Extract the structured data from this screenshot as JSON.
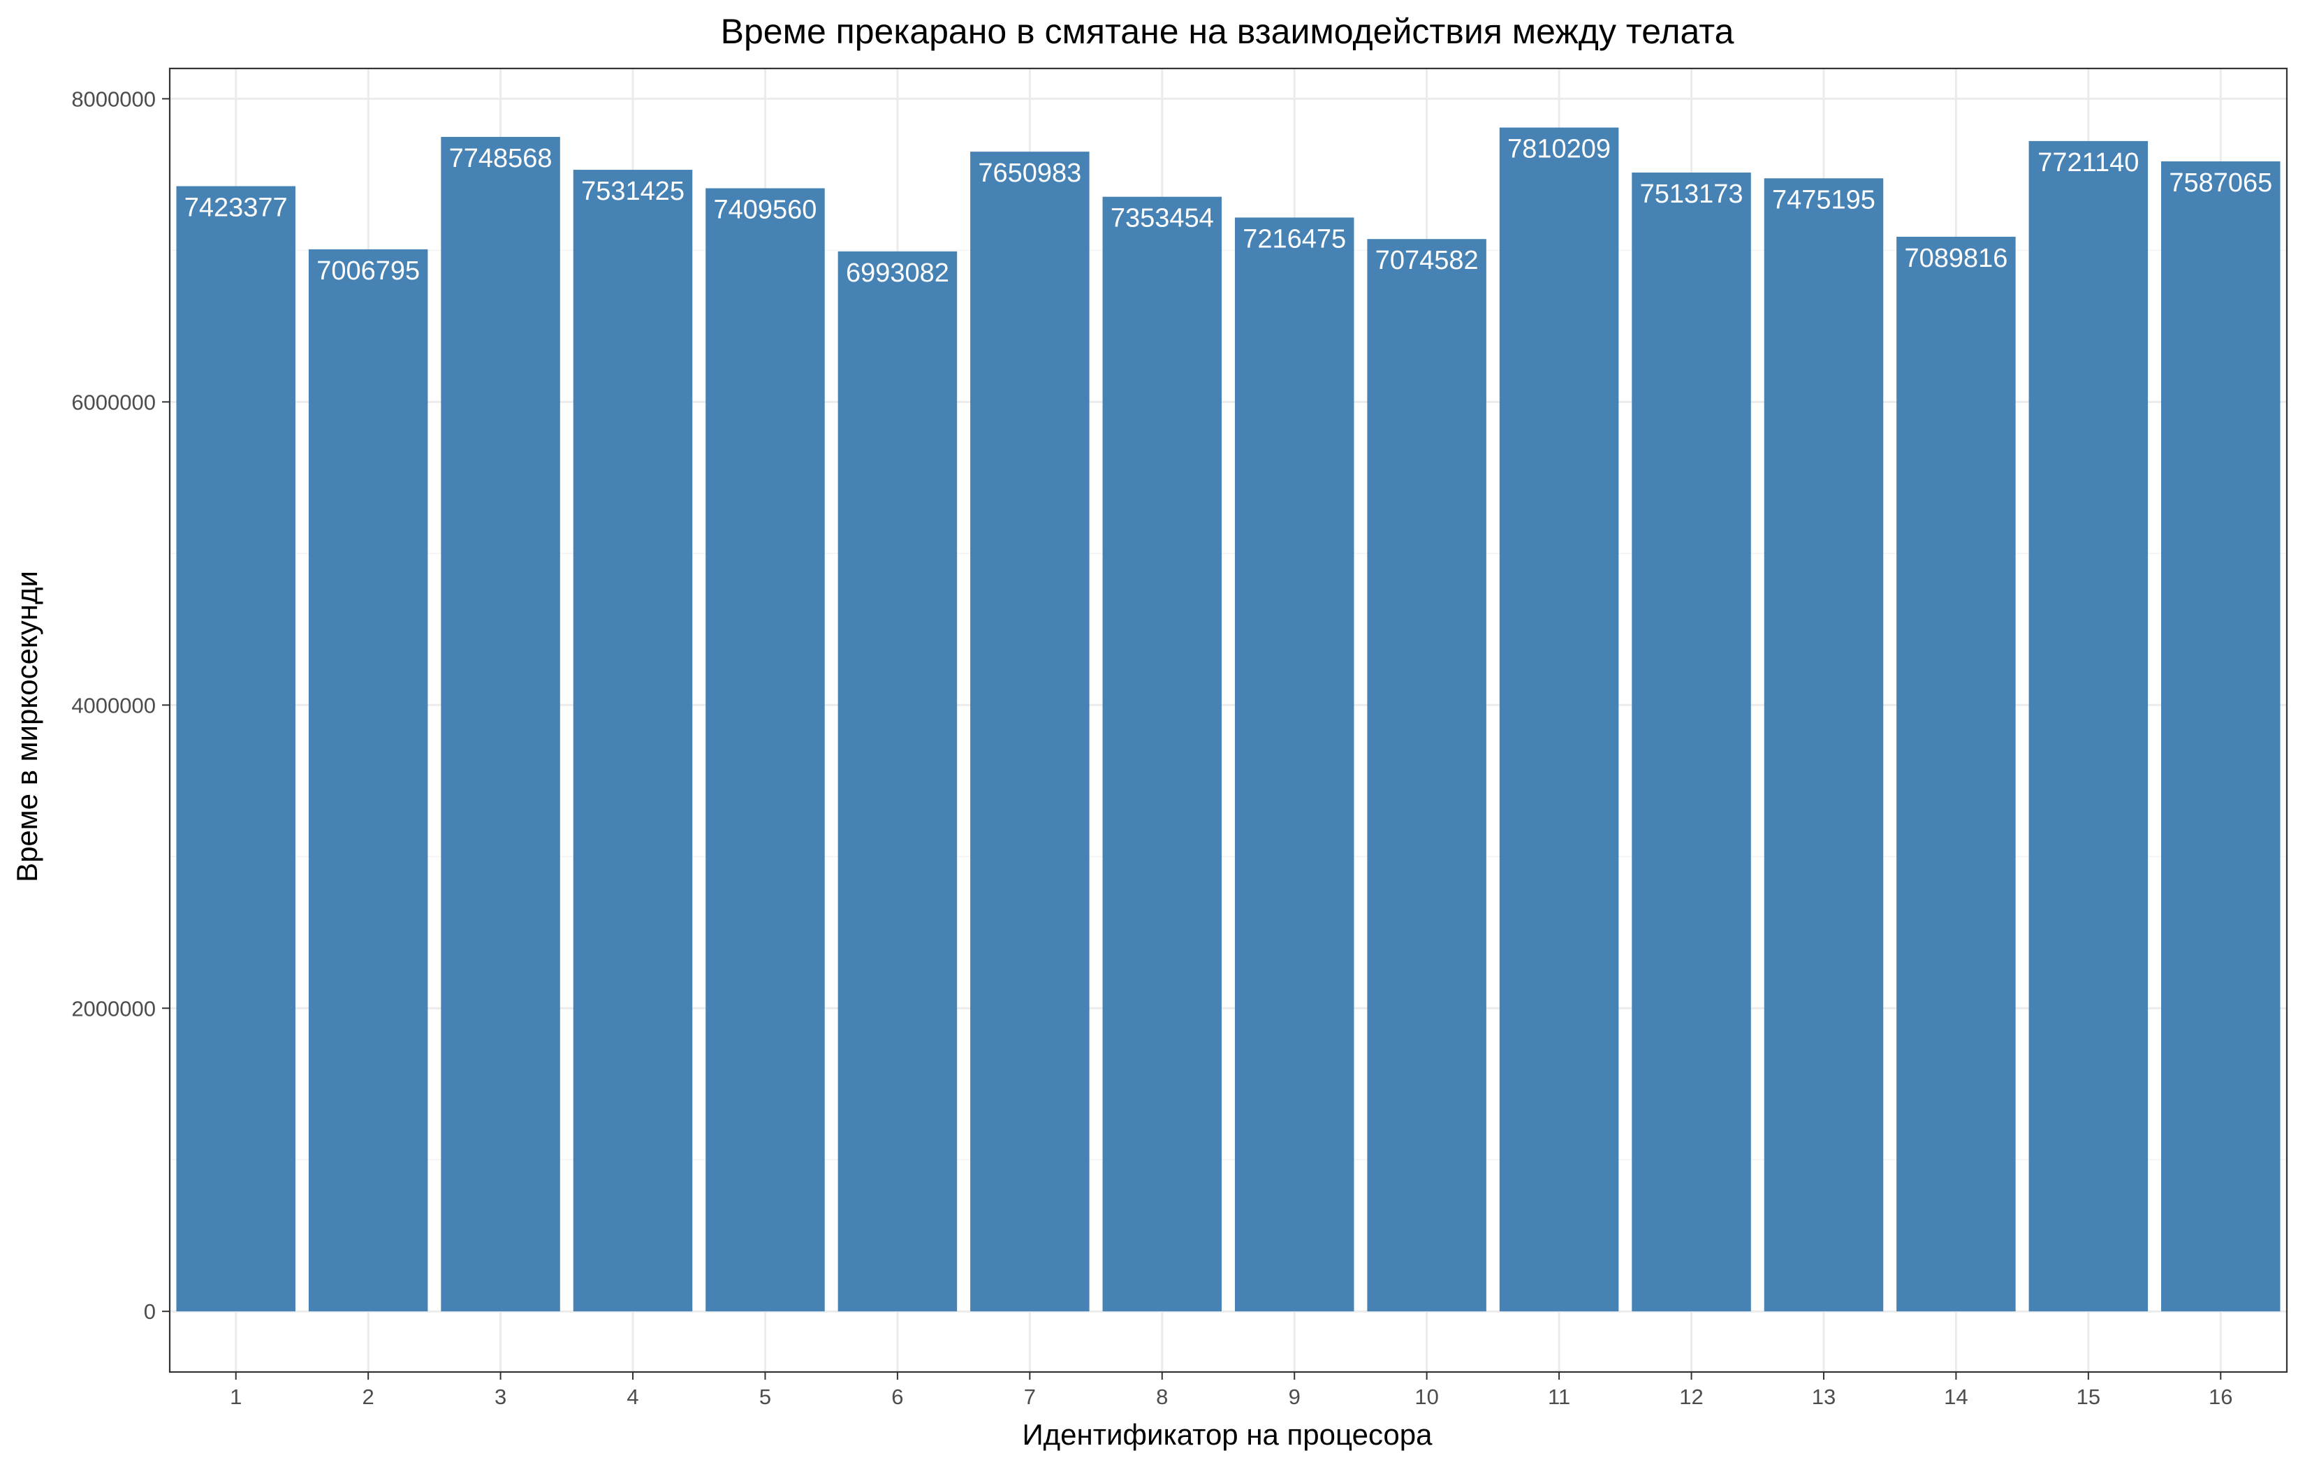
{
  "chart_data": {
    "type": "bar",
    "title": "Време прекарано в смятане на взаимодействия между телата",
    "xlabel": "Идентификатор на процесора",
    "ylabel": "Време в миркосекунди",
    "categories": [
      "1",
      "2",
      "3",
      "4",
      "5",
      "6",
      "7",
      "8",
      "9",
      "10",
      "11",
      "12",
      "13",
      "14",
      "15",
      "16"
    ],
    "values": [
      7423377,
      7006795,
      7748568,
      7531425,
      7409560,
      6993082,
      7650983,
      7353454,
      7216475,
      7074582,
      7810209,
      7513173,
      7475195,
      7089816,
      7721140,
      7587065
    ],
    "value_labels": [
      "7423377",
      "7006795",
      "7748568",
      "7531425",
      "7409560",
      "6993082",
      "7650983",
      "7353454",
      "7216475",
      "7074582",
      "7810209",
      "7513173",
      "7475195",
      "7089816",
      "7721140",
      "7587065"
    ],
    "ylim": [
      -400000,
      8200000
    ],
    "y_ticks": [
      0,
      2000000,
      4000000,
      6000000,
      8000000
    ],
    "y_tick_labels": [
      "0",
      "2000000",
      "4000000",
      "6000000",
      "8000000"
    ],
    "grid": true,
    "legend": "none",
    "bar_color": "#4682b4",
    "background_color": "#ffffff"
  }
}
